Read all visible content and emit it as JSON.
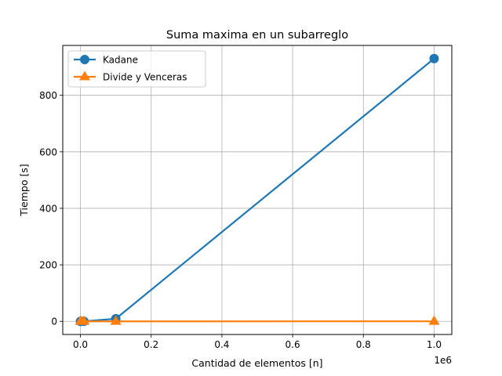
{
  "chart_data": {
    "type": "line",
    "title": "Suma maxima en un subarreglo",
    "xlabel": "Cantidad de elementos [n]",
    "ylabel": "Tiempo [s]",
    "x_offset_text": "1e6",
    "x_scale_factor": 1000000,
    "xlim": [
      -50000,
      1050000
    ],
    "ylim": [
      -46.5,
      976.5
    ],
    "x_ticks": [
      0,
      200000,
      400000,
      600000,
      800000,
      1000000
    ],
    "x_tick_labels": [
      "0.0",
      "0.2",
      "0.4",
      "0.6",
      "0.8",
      "1.0"
    ],
    "y_ticks": [
      0,
      200,
      400,
      600,
      800
    ],
    "y_tick_labels": [
      "0",
      "200",
      "400",
      "600",
      "800"
    ],
    "grid": true,
    "legend_position": "upper-left",
    "x": [
      100,
      1000,
      10000,
      100000,
      1000000
    ],
    "series": [
      {
        "name": "Kadane",
        "color": "#1f77b4",
        "marker": "circle",
        "values": [
          0.0,
          0.01,
          0.1,
          9.3,
          930.0
        ]
      },
      {
        "name": "Divide y Venceras",
        "color": "#ff7f0e",
        "marker": "triangle",
        "values": [
          0.0,
          0.0,
          0.0,
          0.0,
          0.1
        ]
      }
    ]
  }
}
